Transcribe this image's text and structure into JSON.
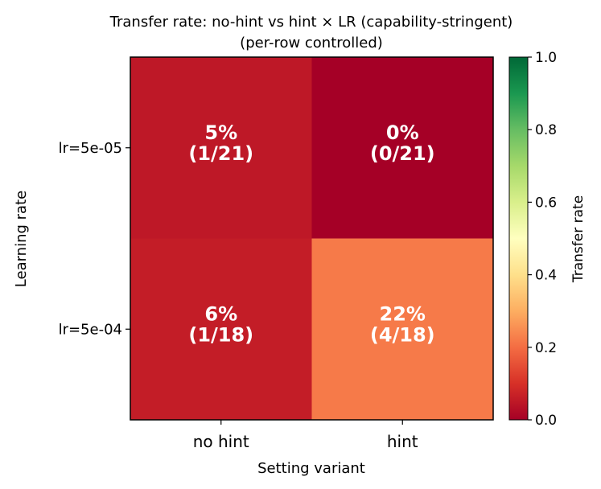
{
  "chart_data": {
    "type": "heatmap",
    "title": "Transfer rate: no-hint vs hint × LR (capability-stringent)",
    "subtitle": "(per-row controlled)",
    "xlabel": "Setting variant",
    "ylabel": "Learning rate",
    "x_categories": [
      "no hint",
      "hint"
    ],
    "y_categories": [
      "lr=5e-05",
      "lr=5e-04"
    ],
    "values": [
      [
        0.05,
        0.0
      ],
      [
        0.06,
        0.22
      ]
    ],
    "cell_labels": [
      [
        [
          "5%",
          "(1/21)"
        ],
        [
          "0%",
          "(0/21)"
        ]
      ],
      [
        [
          "6%",
          "(1/18)"
        ],
        [
          "22%",
          "(4/18)"
        ]
      ]
    ],
    "colorbar": {
      "label": "Transfer rate",
      "range": [
        0.0,
        1.0
      ],
      "ticks": [
        "0.0",
        "0.2",
        "0.4",
        "0.6",
        "0.8",
        "1.0"
      ],
      "colormap": "RdYlGn",
      "stops": [
        "#a50026",
        "#d73027",
        "#f46d43",
        "#fdae61",
        "#fee08b",
        "#ffffbf",
        "#d9ef8b",
        "#a6d96a",
        "#66bd63",
        "#1a9850",
        "#006837"
      ]
    }
  }
}
